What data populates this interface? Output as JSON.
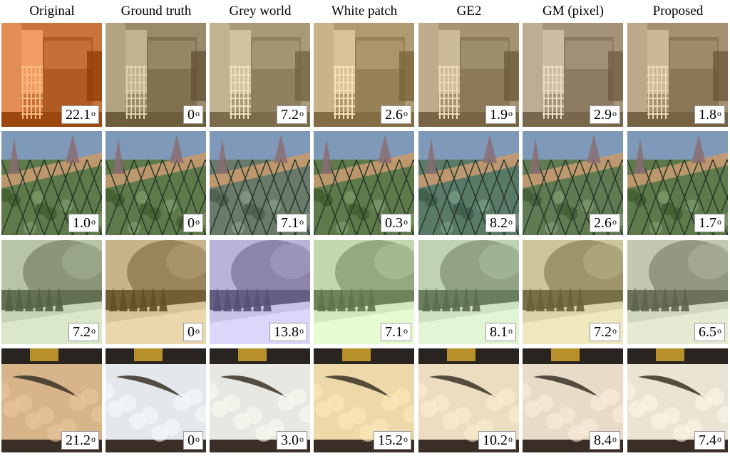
{
  "headers": [
    "Original",
    "Ground truth",
    "Grey world",
    "White patch",
    "GE2",
    "GM (pixel)",
    "Proposed"
  ],
  "degree_symbol": "o",
  "rows": [
    {
      "scene": "building-wall-lattice",
      "errors": [
        "22.1",
        "0",
        "7.2",
        "2.6",
        "1.9",
        "2.9",
        "1.8"
      ],
      "tints": [
        "#c8743a",
        "#9a8a6a",
        "#a89a78",
        "#b09a72",
        "#a49272",
        "#a6947a",
        "#a29070"
      ]
    },
    {
      "scene": "fence-and-foliage",
      "errors": [
        "1.0",
        "0",
        "7.1",
        "0.3",
        "8.2",
        "2.6",
        "1.7"
      ],
      "tints": [
        "#5f7a4a",
        "#5f7a4a",
        "#6a7a6a",
        "#5f7a4a",
        "#5a7a68",
        "#607a52",
        "#5f7a4a"
      ]
    },
    {
      "scene": "trees-and-road",
      "errors": [
        "7.2",
        "0",
        "13.8",
        "7.1",
        "8.1",
        "7.2",
        "6.5"
      ],
      "tints": [
        "#b8c4a8",
        "#c8b48a",
        "#b8b4d8",
        "#c4d8b0",
        "#c0d2b4",
        "#ccc49a",
        "#c2c8b0"
      ]
    },
    {
      "scene": "fish-on-ice",
      "errors": [
        "21.2",
        "0",
        "3.0",
        "15.2",
        "10.2",
        "8.4",
        "7.4"
      ],
      "tints": [
        "#d8b48a",
        "#e4e8ec",
        "#e8e8e2",
        "#ecd8a8",
        "#ecdcc0",
        "#e8dcc8",
        "#eae4d4"
      ]
    }
  ]
}
